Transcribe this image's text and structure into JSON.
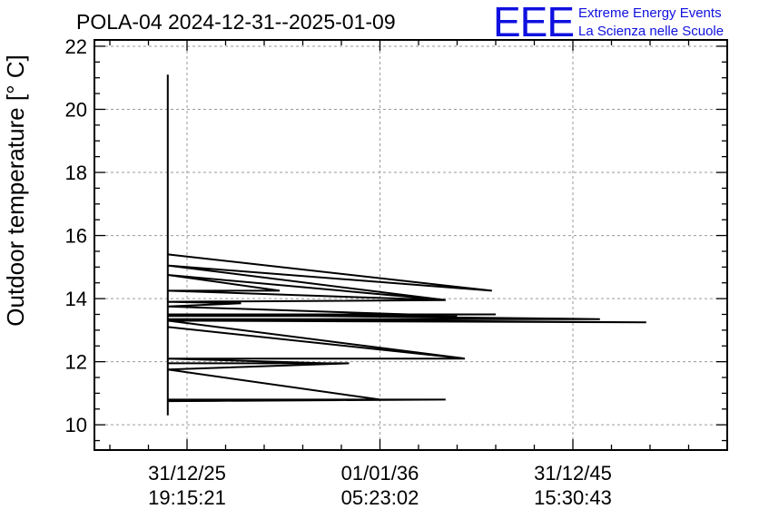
{
  "chart_data": {
    "type": "line",
    "title": "POLA-04 2024-12-31--2025-01-09",
    "logo": {
      "mark": "EEE",
      "line1": "Extreme Energy Events",
      "line2": "La Scienza nelle Scuole"
    },
    "ylabel": "Outdoor temperature [° C]",
    "xlabel": "",
    "ylim": [
      9.2,
      22.2
    ],
    "xlim": [
      -1.2,
      7.0
    ],
    "yticks": [
      10,
      12,
      14,
      16,
      18,
      20,
      22
    ],
    "ytick_labels": [
      "10",
      "12",
      "14",
      "16",
      "18",
      "20",
      "22"
    ],
    "xticks": [
      0,
      2.5,
      5.0
    ],
    "xtick_labels": [
      [
        "31/12/25",
        "19:15:21"
      ],
      [
        "01/01/36",
        "05:23:02"
      ],
      [
        "31/12/45",
        "15:30:43"
      ]
    ],
    "grid": true,
    "series": [
      {
        "color": "#000000",
        "points": [
          [
            -0.25,
            10.3
          ],
          [
            -0.25,
            21.1
          ],
          [
            -0.25,
            15.3
          ],
          [
            -0.25,
            10.8
          ],
          [
            3.35,
            10.8
          ],
          [
            -0.25,
            10.75
          ],
          [
            2.5,
            10.8
          ],
          [
            -0.25,
            11.75
          ],
          [
            2.1,
            11.95
          ],
          [
            -0.25,
            11.95
          ],
          [
            1.8,
            11.95
          ],
          [
            -0.25,
            12.1
          ],
          [
            3.6,
            12.1
          ],
          [
            -0.25,
            13.1
          ],
          [
            3.6,
            12.1
          ],
          [
            -0.25,
            13.3
          ],
          [
            5.95,
            13.25
          ],
          [
            -0.25,
            13.35
          ],
          [
            5.35,
            13.35
          ],
          [
            -0.25,
            13.5
          ],
          [
            4.0,
            13.5
          ],
          [
            -0.25,
            13.45
          ],
          [
            3.5,
            13.45
          ],
          [
            -0.25,
            13.75
          ],
          [
            0.7,
            13.85
          ],
          [
            -0.25,
            13.9
          ],
          [
            3.35,
            13.95
          ],
          [
            -0.25,
            14.25
          ],
          [
            1.2,
            14.25
          ],
          [
            -0.25,
            14.75
          ],
          [
            3.35,
            13.95
          ],
          [
            -0.25,
            15.05
          ],
          [
            3.95,
            14.25
          ],
          [
            -0.25,
            15.4
          ],
          [
            -0.25,
            12.9
          ]
        ]
      }
    ]
  }
}
